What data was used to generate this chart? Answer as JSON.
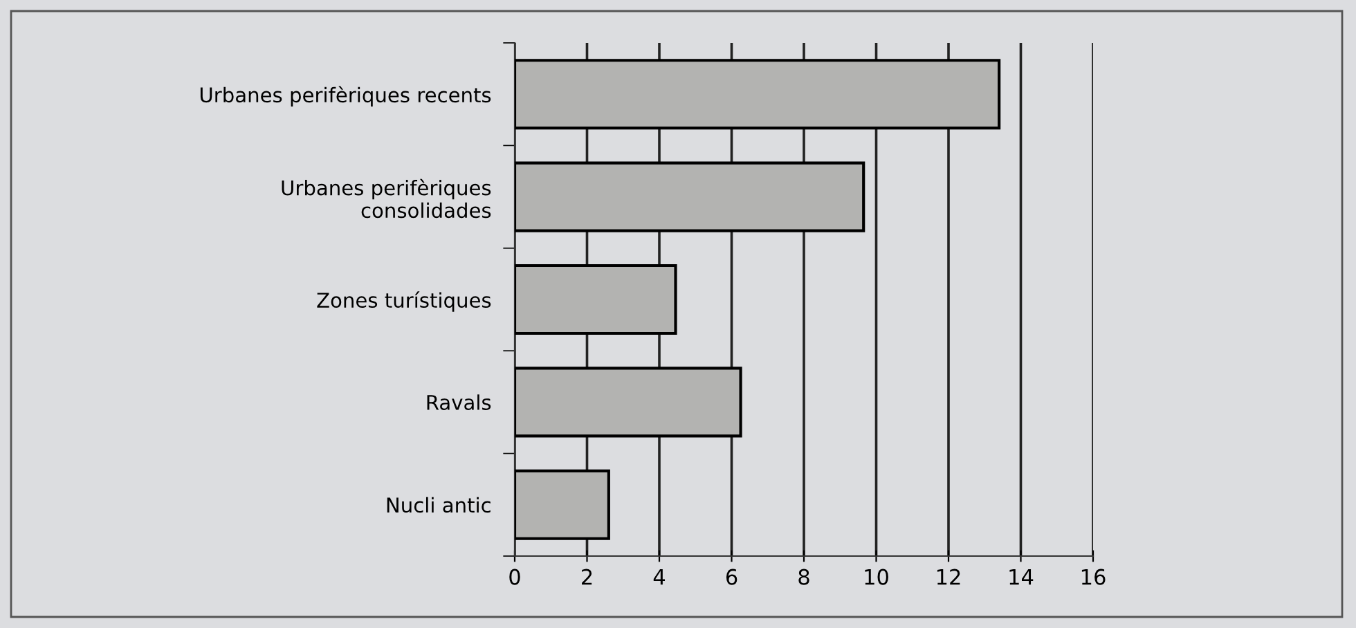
{
  "chart_data": {
    "type": "bar",
    "orientation": "horizontal",
    "categories": [
      "Urbanes perifèriques recents",
      "Urbanes perifèriques\nconsolidades",
      "Zones turístiques",
      "Ravals",
      "Nucli antic"
    ],
    "values": [
      13.4,
      9.65,
      4.45,
      6.25,
      2.6
    ],
    "color": "#b3b3b1",
    "xlim": [
      0,
      16
    ],
    "xticks": [
      0,
      2,
      4,
      6,
      8,
      10,
      12,
      14,
      16
    ],
    "grid": "x",
    "legend": false
  }
}
